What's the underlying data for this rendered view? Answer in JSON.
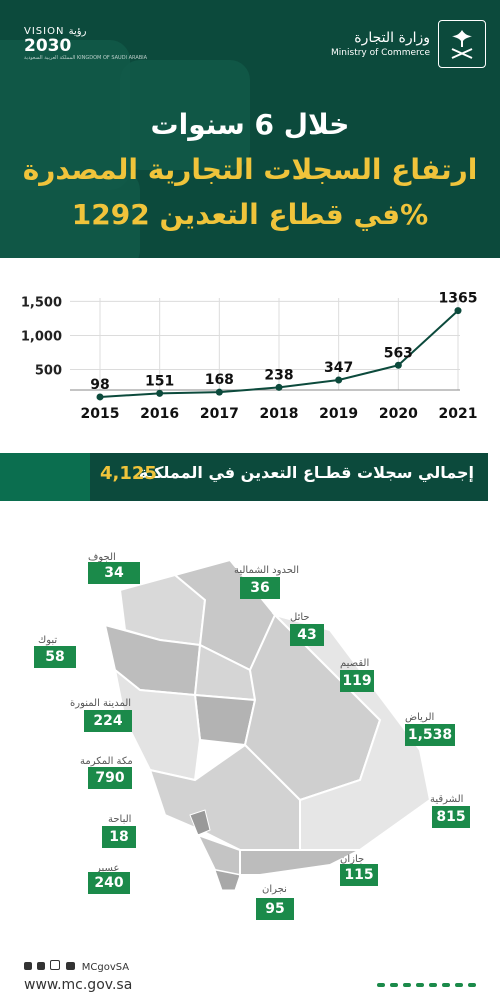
{
  "header": {
    "line1": "خلال 6 سنوات",
    "line2": "ارتفاع السجلات التجارية المصدرة",
    "line3": "في قطاع التعدين 1292%",
    "ministry_ar": "وزارة التجارة",
    "ministry_en": "Ministry of Commerce",
    "vision_top": "VISION رؤية",
    "vision_year": "2030",
    "vision_sub": "المملكة العربية السعودية KINGDOM OF SAUDI ARABIA"
  },
  "chart_data": {
    "type": "line",
    "x": [
      "2015",
      "2016",
      "2017",
      "2018",
      "2019",
      "2020",
      "2021"
    ],
    "values": [
      98,
      151,
      168,
      238,
      347,
      563,
      1365
    ],
    "y_ticks": [
      "1,500",
      "1,000",
      "500"
    ],
    "y_tick_values": [
      1500,
      1000,
      500
    ],
    "ylim": [
      200,
      1550
    ],
    "grid": true,
    "color": "#0c4a3c"
  },
  "banner": {
    "text": "إجمالي سجلات قطـاع التعدين في المملكـة",
    "total": "4,125"
  },
  "regions": [
    {
      "name": "الجوف",
      "value": "34"
    },
    {
      "name": "الحدود الشمالية",
      "value": "36"
    },
    {
      "name": "حائل",
      "value": "43"
    },
    {
      "name": "تبوك",
      "value": "58"
    },
    {
      "name": "القصيم",
      "value": "119"
    },
    {
      "name": "المدينة المنورة",
      "value": "224"
    },
    {
      "name": "الرياض",
      "value": "1,538"
    },
    {
      "name": "مكة المكرمة",
      "value": "790"
    },
    {
      "name": "الشرقية",
      "value": "815"
    },
    {
      "name": "الباحة",
      "value": "18"
    },
    {
      "name": "جازان",
      "value": "115"
    },
    {
      "name": "عسير",
      "value": "240"
    },
    {
      "name": "نجران",
      "value": "95"
    }
  ],
  "footer": {
    "handle": "MCgovSA",
    "url": "www.mc.gov.sa"
  },
  "colors": {
    "dark_green": "#0c4a3c",
    "accent_green": "#1b8a4a",
    "gold": "#f0c43b"
  }
}
